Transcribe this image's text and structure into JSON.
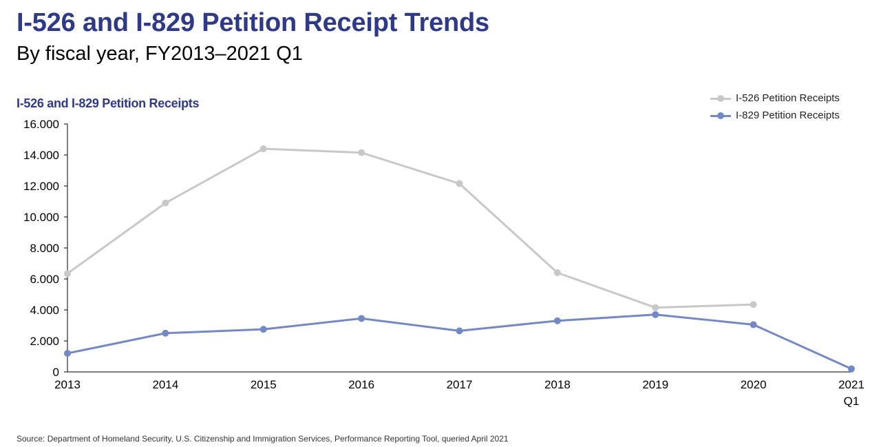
{
  "header": {
    "title": "I-526 and I-829 Petition Receipt Trends",
    "subtitle": "By fiscal year, FY2013–2021 Q1"
  },
  "footer": {
    "source": "Source: Department of Homeland Security, U.S. Citizenship and Immigration Services, Performance Reporting Tool, queried April 2021"
  },
  "chart_data": {
    "type": "line",
    "title": "I-526 and I-829 Petition Receipt Trends",
    "subtitle": "By fiscal year, FY2013–2021 Q1",
    "ylabel": "I-526 and I-829 Petition Receipts",
    "xlabel": "",
    "categories": [
      "2013",
      "2014",
      "2015",
      "2016",
      "2017",
      "2018",
      "2019",
      "2020",
      "2021 Q1"
    ],
    "category_labels": [
      [
        "2013"
      ],
      [
        "2014"
      ],
      [
        "2015"
      ],
      [
        "2016"
      ],
      [
        "2017"
      ],
      [
        "2018"
      ],
      [
        "2019"
      ],
      [
        "2020"
      ],
      [
        "2021",
        "Q1"
      ]
    ],
    "ylim": [
      0,
      16000
    ],
    "yticks": [
      0,
      2000,
      4000,
      6000,
      8000,
      10000,
      12000,
      14000,
      16000
    ],
    "ytick_labels": [
      "0",
      "2.000",
      "4.000",
      "6.000",
      "8.000",
      "10.000",
      "12.000",
      "14.000",
      "16.000"
    ],
    "grid": false,
    "legend_position": "top-right",
    "series": [
      {
        "name": "I-526 Petition Receipts",
        "color": "#c8c8c8",
        "values": [
          6350,
          10900,
          14400,
          14150,
          12150,
          6400,
          4150,
          4350,
          null
        ]
      },
      {
        "name": "I-829 Petition Receipts",
        "color": "#7489c4",
        "values": [
          1200,
          2500,
          2750,
          3450,
          2650,
          3300,
          3700,
          3050,
          200
        ]
      }
    ]
  }
}
